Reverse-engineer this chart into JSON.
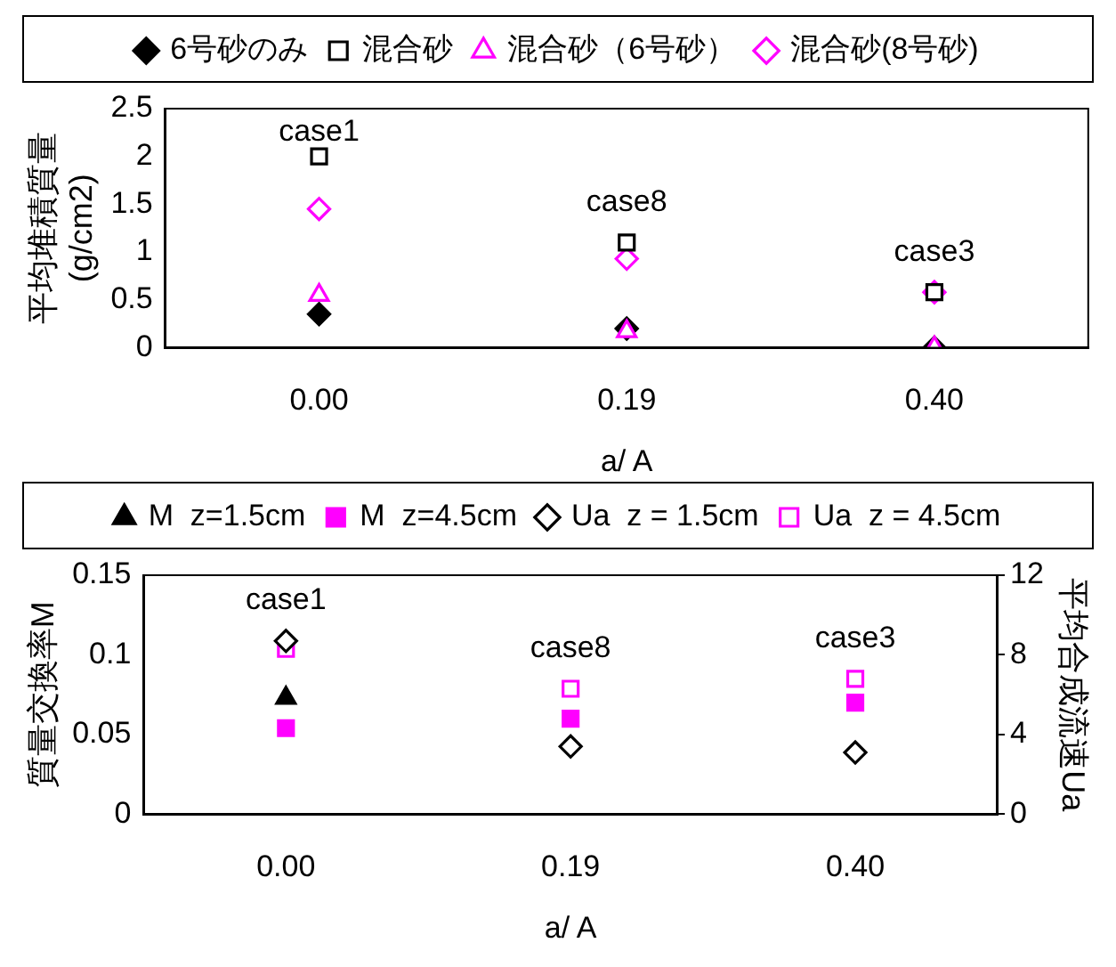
{
  "chart_data": [
    {
      "type": "scatter",
      "xlabel": "a/ A",
      "ylabel": "平均堆積質量\n(g/cm2)",
      "categories": [
        "0.00",
        "0.19",
        "0.40"
      ],
      "series": [
        {
          "name": "6号砂のみ",
          "color": "#000000",
          "marker": "diamond",
          "values": [
            0.35,
            0.2,
            0.0
          ]
        },
        {
          "name": "混合砂",
          "color": "#000000",
          "marker": "square",
          "values": [
            2.0,
            1.1,
            0.58
          ]
        },
        {
          "name": "混合砂（6号砂）",
          "color": "#ff00ff",
          "marker": "triangle",
          "values": [
            0.55,
            0.17,
            0.0
          ]
        },
        {
          "name": "混合砂(8号砂)",
          "color": "#ff00ff",
          "marker": "diamond",
          "values": [
            1.45,
            0.93,
            0.58
          ]
        }
      ],
      "ylim": [
        0,
        2.5
      ],
      "yticks": [
        0,
        0.5,
        1,
        1.5,
        2,
        2.5
      ],
      "grid": false,
      "legend": "top",
      "annotations": [
        "case1",
        "case8",
        "case3"
      ]
    },
    {
      "type": "scatter",
      "xlabel": "a/ A",
      "ylabel": "質量交換率M",
      "y2label": "平均合成流速Ua",
      "categories": [
        "0.00",
        "0.19",
        "0.40"
      ],
      "series": [
        {
          "name": "M  z=1.5cm",
          "color": "#000000",
          "marker": "triangle",
          "values": [
            0.073,
            null,
            null
          ]
        },
        {
          "name": "M  z=4.5cm",
          "color": "#ff00ff",
          "marker": "square",
          "values": [
            0.054,
            0.06,
            0.07
          ]
        },
        {
          "name": "Ua  z = 1.5cm",
          "color": "#000000",
          "marker": "diamond",
          "axis": "y2",
          "values": [
            8.7,
            3.4,
            3.1
          ]
        },
        {
          "name": "Ua  z = 4.5cm",
          "color": "#ff00ff",
          "marker": "square",
          "axis": "y2",
          "values": [
            8.3,
            6.3,
            6.8
          ]
        }
      ],
      "ylim": [
        0,
        0.15
      ],
      "yticks": [
        0,
        0.05,
        0.1,
        0.15
      ],
      "y2lim": [
        0,
        12
      ],
      "y2ticks": [
        0,
        4,
        8,
        12
      ],
      "grid": false,
      "legend": "top",
      "annotations": [
        "case1",
        "case8",
        "case3"
      ]
    }
  ]
}
